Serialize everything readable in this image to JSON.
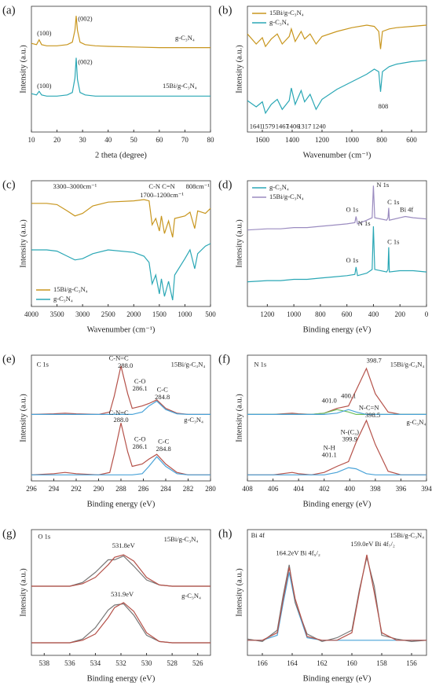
{
  "chart_data": [
    {
      "type": "line",
      "panel": "(a)",
      "xlabel": "2 theta (degree)",
      "ylabel": "Intensity (a.u.)",
      "xlim": [
        10,
        80
      ],
      "xticks": [
        10,
        20,
        30,
        40,
        50,
        60,
        70,
        80
      ],
      "ylim": [
        0,
        105
      ],
      "x": [
        10,
        12,
        13,
        14,
        16,
        20,
        24,
        26,
        27,
        27.5,
        28,
        29,
        31,
        35,
        40,
        50,
        60,
        70,
        80
      ],
      "series": [
        {
          "color": "#c8961e",
          "values": [
            74,
            73,
            77,
            73,
            72,
            72,
            73,
            75,
            85,
            97,
            85,
            75,
            73,
            72,
            71.5,
            71,
            70.5,
            70.5,
            70.5
          ]
        },
        {
          "color": "#2aa7b5",
          "values": [
            32,
            31,
            34,
            31,
            30,
            30,
            31,
            33,
            45,
            62,
            44,
            33,
            31,
            30,
            30,
            30,
            30,
            30,
            30
          ]
        }
      ],
      "annotations": [
        {
          "text": "(100)",
          "x": 15,
          "y": 82
        },
        {
          "text": "(002)",
          "x": 31,
          "y": 94
        },
        {
          "text": "(100)",
          "x": 15,
          "y": 38
        },
        {
          "text": "(002)",
          "x": 31,
          "y": 58
        },
        {
          "text": "g-C₃N₄",
          "x": 70,
          "y": 78
        },
        {
          "text": "15Bi/g-C₃N₄",
          "x": 68,
          "y": 38
        }
      ]
    },
    {
      "type": "line",
      "panel": "(b)",
      "xlabel": "Wavenumber (cm⁻¹)",
      "ylabel": "Intensity (a.u.)",
      "xlim": [
        1700,
        500
      ],
      "xticks": [
        1600,
        1400,
        1200,
        1000,
        800,
        600
      ],
      "ylim": [
        0,
        100
      ],
      "legend": "upper left",
      "x": [
        1700,
        1641,
        1600,
        1579,
        1540,
        1500,
        1467,
        1420,
        1406,
        1380,
        1340,
        1317,
        1280,
        1240,
        1200,
        1100,
        1000,
        900,
        850,
        820,
        808,
        795,
        750,
        700,
        600,
        500
      ],
      "series": [
        {
          "name": "15Bi/g-C₃N₄",
          "color": "#c8961e",
          "values": [
            78,
            70,
            75,
            68,
            74,
            78,
            70,
            76,
            82,
            72,
            80,
            74,
            78,
            70,
            76,
            80,
            83,
            85,
            84,
            80,
            66,
            80,
            82,
            83,
            84,
            85
          ]
        },
        {
          "name": "g-C₃N₄",
          "color": "#2aa7b5",
          "values": [
            25,
            20,
            24,
            15,
            22,
            26,
            18,
            25,
            35,
            22,
            33,
            24,
            30,
            18,
            26,
            34,
            40,
            46,
            50,
            48,
            32,
            48,
            52,
            54,
            56,
            57
          ]
        }
      ],
      "annotations": [
        {
          "text": "1641",
          "x": 1641,
          "y": 4
        },
        {
          "text": "1579",
          "x": 1560,
          "y": 4
        },
        {
          "text": "1467",
          "x": 1467,
          "y": 4
        },
        {
          "text": "1406",
          "x": 1395,
          "y": 4
        },
        {
          "text": "1317",
          "x": 1317,
          "y": 4
        },
        {
          "text": "1240",
          "x": 1220,
          "y": 4
        },
        {
          "text": "808",
          "x": 790,
          "y": 20
        }
      ]
    },
    {
      "type": "line",
      "panel": "(c)",
      "xlabel": "Wavenumber (cm⁻¹)",
      "ylabel": "Intensity (a.u.)",
      "xlim": [
        4000,
        500
      ],
      "xticks": [
        4000,
        3500,
        3000,
        2500,
        2000,
        1500,
        1000,
        500
      ],
      "ylim": [
        0,
        100
      ],
      "legend": "lower left",
      "x": [
        4000,
        3700,
        3500,
        3300,
        3150,
        3000,
        2800,
        2500,
        2000,
        1800,
        1700,
        1640,
        1570,
        1500,
        1460,
        1400,
        1320,
        1240,
        1200,
        1000,
        900,
        808,
        750,
        600,
        500
      ],
      "series": [
        {
          "name": "15Bi/g-C₃N₄",
          "color": "#c8961e",
          "values": [
            82,
            82,
            81,
            76,
            72,
            74,
            80,
            83,
            84,
            85,
            84,
            65,
            70,
            60,
            72,
            58,
            68,
            55,
            70,
            72,
            75,
            62,
            76,
            74,
            78
          ]
        },
        {
          "name": "g-C₃N₄",
          "color": "#2aa7b5",
          "values": [
            45,
            45,
            44,
            40,
            37,
            38,
            42,
            45,
            43,
            40,
            35,
            18,
            25,
            10,
            22,
            8,
            20,
            5,
            25,
            38,
            45,
            30,
            42,
            48,
            50
          ]
        }
      ],
      "annotations": [
        {
          "text": "3300–3000cm⁻¹",
          "x": 3150,
          "y": 95
        },
        {
          "text": "C-N C=N",
          "x": 1450,
          "y": 95
        },
        {
          "text": "1700–1200cm⁻¹",
          "x": 1450,
          "y": 88
        },
        {
          "text": "808cm⁻¹",
          "x": 750,
          "y": 95
        }
      ]
    },
    {
      "type": "line",
      "panel": "(d)",
      "xlabel": "Binding energy (eV)",
      "ylabel": "Intensity (a.u.)",
      "xlim": [
        1350,
        0
      ],
      "xticks": [
        1200,
        1000,
        800,
        600,
        400,
        200,
        0
      ],
      "ylim": [
        0,
        102
      ],
      "legend": "upper left",
      "x": [
        1350,
        1200,
        1100,
        1000,
        900,
        800,
        700,
        600,
        540,
        531,
        520,
        450,
        410,
        400,
        390,
        300,
        290,
        285,
        280,
        200,
        160,
        100,
        0
      ],
      "series": [
        {
          "name": "g-C₃N₄",
          "color": "#2aa7b5",
          "values": [
            20,
            21,
            21,
            22,
            22,
            23,
            24,
            25,
            26,
            32,
            25,
            27,
            30,
            65,
            30,
            28,
            30,
            48,
            28,
            29,
            29,
            29,
            28
          ]
        },
        {
          "name": "15Bi/g-C₃N₄",
          "color": "#9b8cc0",
          "values": [
            62,
            63,
            63,
            64,
            64,
            65,
            66,
            67,
            68,
            73,
            67,
            70,
            72,
            98,
            72,
            70,
            72,
            80,
            70,
            72,
            73,
            72,
            71
          ]
        }
      ],
      "annotations": [
        {
          "text": "O 1s",
          "x": 560,
          "y": 78
        },
        {
          "text": "N 1s",
          "x": 330,
          "y": 98
        },
        {
          "text": "C 1s",
          "x": 250,
          "y": 84
        },
        {
          "text": "Bi 4f",
          "x": 150,
          "y": 78
        },
        {
          "text": "N 1s",
          "x": 470,
          "y": 67
        },
        {
          "text": "O 1s",
          "x": 560,
          "y": 37
        },
        {
          "text": "C 1s",
          "x": 250,
          "y": 52
        }
      ]
    },
    {
      "type": "line",
      "panel": "(e)",
      "xlabel": "Binding energy (eV)",
      "ylabel": "Intensity (a.u.)",
      "xlim": [
        296,
        280
      ],
      "xticks": [
        296,
        294,
        292,
        290,
        288,
        286,
        284,
        282,
        280
      ],
      "ylim": [
        0,
        104
      ],
      "x": [
        296,
        294,
        293,
        292,
        290,
        289,
        288.6,
        288,
        287.4,
        287,
        286.1,
        285.5,
        284.8,
        284,
        283,
        282,
        280
      ],
      "series": [
        {
          "color": "#b5524a",
          "values": [
            55,
            55.5,
            56,
            55.5,
            55,
            57,
            70,
            95,
            72,
            60,
            62,
            64,
            67,
            60,
            56,
            55,
            55
          ]
        },
        {
          "color": "#4aa3d8",
          "values": [
            55,
            55,
            55,
            55,
            55,
            55,
            55,
            55,
            55,
            55,
            57,
            62,
            66,
            59,
            55.5,
            55,
            55
          ]
        },
        {
          "color": "#b5524a",
          "values": [
            5,
            6,
            7,
            6,
            5,
            7,
            22,
            48,
            24,
            12,
            14,
            18,
            22,
            14,
            7,
            5,
            5
          ]
        },
        {
          "color": "#4aa3d8",
          "values": [
            5,
            5,
            5,
            5,
            5,
            5,
            5,
            5,
            5,
            5,
            6,
            12,
            20,
            12,
            6,
            5,
            5
          ]
        }
      ],
      "annotations": [
        {
          "text": "C 1s",
          "x": 295,
          "y": 96
        },
        {
          "text": "15Bi/g-C₃N₄",
          "x": 282,
          "y": 96
        },
        {
          "text": "C-N=C",
          "x": 288.2,
          "y": 101
        },
        {
          "text": "288.0",
          "x": 287.6,
          "y": 95
        },
        {
          "text": "C-O",
          "x": 286.3,
          "y": 82
        },
        {
          "text": "286.1",
          "x": 286.3,
          "y": 76
        },
        {
          "text": "C-C",
          "x": 284.3,
          "y": 75
        },
        {
          "text": "284.8",
          "x": 284.3,
          "y": 69
        },
        {
          "text": "g-C₃N₄",
          "x": 281.5,
          "y": 50
        },
        {
          "text": "C-N=C",
          "x": 288.2,
          "y": 56
        },
        {
          "text": "288.0",
          "x": 288,
          "y": 50
        },
        {
          "text": "C-O",
          "x": 286.3,
          "y": 34
        },
        {
          "text": "286.1",
          "x": 286.3,
          "y": 28
        },
        {
          "text": "C-C",
          "x": 284.2,
          "y": 32
        },
        {
          "text": "284.8",
          "x": 284.2,
          "y": 26
        }
      ]
    },
    {
      "type": "line",
      "panel": "(f)",
      "xlabel": "Binding energy (eV)",
      "ylabel": "Intensity (a.u.)",
      "xlim": [
        408,
        394
      ],
      "xticks": [
        408,
        406,
        404,
        402,
        400,
        398,
        396,
        394
      ],
      "ylim": [
        0,
        104
      ],
      "x": [
        408,
        406,
        404.5,
        404,
        403,
        402,
        401,
        400.1,
        399.5,
        398.7,
        398,
        397,
        396,
        394
      ],
      "series": [
        {
          "color": "#b5524a",
          "values": [
            55,
            55,
            56,
            55.5,
            55,
            56,
            60,
            62,
            75,
            93,
            72,
            57,
            55,
            55
          ]
        },
        {
          "color": "#6cbf5a",
          "values": [
            55,
            55,
            55,
            55,
            55,
            56,
            59,
            57,
            55,
            55,
            55,
            55,
            55,
            55
          ]
        },
        {
          "color": "#4aa3d8",
          "values": [
            55,
            55,
            55,
            55,
            55,
            55,
            56,
            59,
            57,
            55,
            55,
            55,
            55,
            55
          ]
        },
        {
          "color": "#b5524a",
          "values": [
            5,
            5,
            7,
            6,
            5,
            7,
            12,
            16,
            32,
            50,
            30,
            8,
            5,
            5
          ]
        },
        {
          "color": "#4aa3d8",
          "values": [
            5,
            5,
            5,
            5,
            5,
            5,
            7,
            11,
            10,
            6,
            5,
            5,
            5,
            5
          ]
        }
      ],
      "annotations": [
        {
          "text": "N 1s",
          "x": 407,
          "y": 96
        },
        {
          "text": "15Bi/g-C₃N₄",
          "x": 395.5,
          "y": 96
        },
        {
          "text": "398.7",
          "x": 398.1,
          "y": 99
        },
        {
          "text": "400.1",
          "x": 400.1,
          "y": 70
        },
        {
          "text": "401.0",
          "x": 401.6,
          "y": 66
        },
        {
          "text": "g-C₃N₄",
          "x": 394.8,
          "y": 48
        },
        {
          "text": "N-C=N",
          "x": 398.5,
          "y": 60
        },
        {
          "text": "398.5",
          "x": 398.2,
          "y": 54
        },
        {
          "text": "N-(C₃)",
          "x": 400,
          "y": 40
        },
        {
          "text": "399.9",
          "x": 400,
          "y": 34
        },
        {
          "text": "N-H",
          "x": 401.6,
          "y": 27
        },
        {
          "text": "401.1",
          "x": 401.6,
          "y": 21
        }
      ]
    },
    {
      "type": "line",
      "panel": "(g)",
      "xlabel": "Binding energy (eV)",
      "ylabel": "Intensity (a.u.)",
      "xlim": [
        539,
        525
      ],
      "xticks": [
        538,
        536,
        534,
        532,
        530,
        528,
        526
      ],
      "ylim": [
        0,
        100
      ],
      "x": [
        539,
        536,
        535,
        534,
        533,
        532.5,
        531.8,
        531,
        530,
        529,
        528,
        525
      ],
      "series": [
        {
          "color": "#777777",
          "values": [
            55,
            55,
            58,
            66,
            76,
            76,
            79,
            71,
            60,
            56,
            55,
            55
          ]
        },
        {
          "color": "#b5524a",
          "values": [
            55,
            55,
            57,
            62,
            72,
            78,
            80,
            75,
            62,
            56,
            55,
            55
          ]
        },
        {
          "color": "#777777",
          "values": [
            10,
            10,
            13,
            22,
            36,
            40,
            41,
            32,
            16,
            11,
            10,
            10
          ]
        },
        {
          "color": "#b5524a",
          "values": [
            10,
            10,
            12,
            17,
            30,
            38,
            42,
            35,
            18,
            11,
            10,
            10
          ]
        }
      ],
      "annotations": [
        {
          "text": "O 1s",
          "x": 538,
          "y": 94
        },
        {
          "text": "15Bi/g-C₃N₄",
          "x": 527.3,
          "y": 92
        },
        {
          "text": "531.8eV",
          "x": 531.8,
          "y": 87
        },
        {
          "text": "g-C₃N₄",
          "x": 526.5,
          "y": 47
        },
        {
          "text": "531.9eV",
          "x": 531.9,
          "y": 48
        }
      ]
    },
    {
      "type": "line",
      "panel": "(h)",
      "xlabel": "Binding energy (eV)",
      "ylabel": "Intensity (a.u.)",
      "xlim": [
        167,
        155
      ],
      "xticks": [
        166,
        164,
        162,
        160,
        158,
        156
      ],
      "ylim": [
        0,
        100
      ],
      "x": [
        167,
        166,
        165,
        164.6,
        164.2,
        163.8,
        163,
        162,
        161,
        160,
        159.5,
        159,
        158.5,
        158,
        157,
        156,
        155
      ],
      "series": [
        {
          "color": "#4aa3d8",
          "values": [
            12,
            12,
            16,
            42,
            66,
            42,
            14,
            12,
            12,
            12,
            12,
            12,
            12,
            12,
            12,
            12,
            12
          ]
        },
        {
          "color": "#777777",
          "values": [
            13,
            11,
            20,
            48,
            72,
            42,
            17,
            11,
            14,
            20,
            52,
            78,
            55,
            16,
            13,
            11,
            12
          ]
        },
        {
          "color": "#b5524a",
          "values": [
            12,
            12,
            18,
            45,
            70,
            45,
            15,
            12,
            12,
            18,
            50,
            80,
            50,
            18,
            12,
            12,
            12
          ]
        }
      ],
      "annotations": [
        {
          "text": "Bi 4f",
          "x": 166.3,
          "y": 95
        },
        {
          "text": "15Bi/g-C₃N₄",
          "x": 156.3,
          "y": 95
        },
        {
          "text": "164.2eV  Bi 4f₅/₂",
          "x": 163.6,
          "y": 81
        },
        {
          "text": "159.0eV  Bi 4f₇/₂",
          "x": 158.6,
          "y": 88
        }
      ]
    }
  ]
}
